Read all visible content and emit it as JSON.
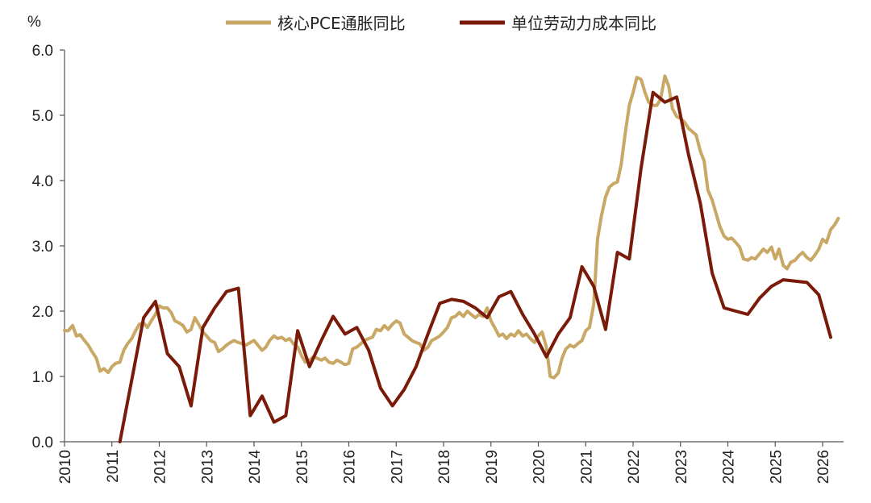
{
  "chart_data": {
    "type": "line",
    "unit_label": "%",
    "title": "",
    "xlabel": "",
    "ylabel": "",
    "xlim": [
      2010.0,
      2026.5
    ],
    "ylim": [
      0,
      6
    ],
    "x_ticks": [
      "2010",
      "2011",
      "2012",
      "2013",
      "2014",
      "2015",
      "2016",
      "2017",
      "2018",
      "2019",
      "2020",
      "2021",
      "2022",
      "2023",
      "2024",
      "2025",
      "2026"
    ],
    "y_ticks": [
      "0.0",
      "1.0",
      "2.0",
      "3.0",
      "4.0",
      "5.0",
      "6.0"
    ],
    "grid": false,
    "legend_position": "top",
    "series": [
      {
        "name": "核心PCE通胀同比",
        "color": "#c9a765",
        "points": [
          [
            2010.0,
            1.7
          ],
          [
            2010.08,
            1.7
          ],
          [
            2010.17,
            1.78
          ],
          [
            2010.25,
            1.62
          ],
          [
            2010.33,
            1.64
          ],
          [
            2010.42,
            1.55
          ],
          [
            2010.5,
            1.48
          ],
          [
            2010.58,
            1.38
          ],
          [
            2010.67,
            1.28
          ],
          [
            2010.75,
            1.08
          ],
          [
            2010.83,
            1.12
          ],
          [
            2010.92,
            1.06
          ],
          [
            2011.0,
            1.15
          ],
          [
            2011.08,
            1.2
          ],
          [
            2011.17,
            1.22
          ],
          [
            2011.25,
            1.4
          ],
          [
            2011.33,
            1.5
          ],
          [
            2011.42,
            1.58
          ],
          [
            2011.5,
            1.7
          ],
          [
            2011.58,
            1.8
          ],
          [
            2011.67,
            1.82
          ],
          [
            2011.75,
            1.75
          ],
          [
            2011.83,
            1.85
          ],
          [
            2011.92,
            1.95
          ],
          [
            2012.0,
            2.08
          ],
          [
            2012.08,
            2.05
          ],
          [
            2012.17,
            2.05
          ],
          [
            2012.25,
            1.98
          ],
          [
            2012.33,
            1.85
          ],
          [
            2012.42,
            1.82
          ],
          [
            2012.5,
            1.78
          ],
          [
            2012.58,
            1.68
          ],
          [
            2012.67,
            1.72
          ],
          [
            2012.75,
            1.9
          ],
          [
            2012.83,
            1.8
          ],
          [
            2012.92,
            1.68
          ],
          [
            2013.0,
            1.62
          ],
          [
            2013.08,
            1.55
          ],
          [
            2013.17,
            1.52
          ],
          [
            2013.25,
            1.38
          ],
          [
            2013.33,
            1.42
          ],
          [
            2013.42,
            1.48
          ],
          [
            2013.5,
            1.52
          ],
          [
            2013.58,
            1.55
          ],
          [
            2013.67,
            1.52
          ],
          [
            2013.75,
            1.5
          ],
          [
            2013.83,
            1.48
          ],
          [
            2013.92,
            1.52
          ],
          [
            2014.0,
            1.55
          ],
          [
            2014.08,
            1.48
          ],
          [
            2014.17,
            1.4
          ],
          [
            2014.25,
            1.45
          ],
          [
            2014.33,
            1.55
          ],
          [
            2014.42,
            1.62
          ],
          [
            2014.5,
            1.58
          ],
          [
            2014.58,
            1.6
          ],
          [
            2014.67,
            1.55
          ],
          [
            2014.75,
            1.58
          ],
          [
            2014.83,
            1.5
          ],
          [
            2014.92,
            1.45
          ],
          [
            2015.0,
            1.32
          ],
          [
            2015.08,
            1.22
          ],
          [
            2015.17,
            1.25
          ],
          [
            2015.25,
            1.3
          ],
          [
            2015.33,
            1.28
          ],
          [
            2015.42,
            1.25
          ],
          [
            2015.5,
            1.28
          ],
          [
            2015.58,
            1.22
          ],
          [
            2015.67,
            1.2
          ],
          [
            2015.75,
            1.25
          ],
          [
            2015.83,
            1.22
          ],
          [
            2015.92,
            1.18
          ],
          [
            2016.0,
            1.2
          ],
          [
            2016.08,
            1.42
          ],
          [
            2016.17,
            1.45
          ],
          [
            2016.25,
            1.5
          ],
          [
            2016.33,
            1.55
          ],
          [
            2016.42,
            1.58
          ],
          [
            2016.5,
            1.6
          ],
          [
            2016.58,
            1.72
          ],
          [
            2016.67,
            1.7
          ],
          [
            2016.75,
            1.78
          ],
          [
            2016.83,
            1.72
          ],
          [
            2016.92,
            1.8
          ],
          [
            2017.0,
            1.85
          ],
          [
            2017.08,
            1.82
          ],
          [
            2017.17,
            1.65
          ],
          [
            2017.25,
            1.6
          ],
          [
            2017.33,
            1.55
          ],
          [
            2017.42,
            1.52
          ],
          [
            2017.5,
            1.5
          ],
          [
            2017.58,
            1.4
          ],
          [
            2017.67,
            1.45
          ],
          [
            2017.75,
            1.55
          ],
          [
            2017.83,
            1.58
          ],
          [
            2017.92,
            1.62
          ],
          [
            2018.0,
            1.68
          ],
          [
            2018.08,
            1.75
          ],
          [
            2018.17,
            1.9
          ],
          [
            2018.25,
            1.92
          ],
          [
            2018.33,
            1.98
          ],
          [
            2018.42,
            1.92
          ],
          [
            2018.5,
            2.0
          ],
          [
            2018.58,
            1.95
          ],
          [
            2018.67,
            1.9
          ],
          [
            2018.75,
            1.95
          ],
          [
            2018.83,
            1.92
          ],
          [
            2018.92,
            2.05
          ],
          [
            2019.0,
            1.85
          ],
          [
            2019.08,
            1.75
          ],
          [
            2019.17,
            1.62
          ],
          [
            2019.25,
            1.65
          ],
          [
            2019.33,
            1.58
          ],
          [
            2019.42,
            1.65
          ],
          [
            2019.5,
            1.62
          ],
          [
            2019.58,
            1.7
          ],
          [
            2019.67,
            1.62
          ],
          [
            2019.75,
            1.65
          ],
          [
            2019.83,
            1.58
          ],
          [
            2019.92,
            1.52
          ],
          [
            2020.0,
            1.62
          ],
          [
            2020.08,
            1.68
          ],
          [
            2020.17,
            1.45
          ],
          [
            2020.25,
            1.0
          ],
          [
            2020.33,
            0.98
          ],
          [
            2020.42,
            1.05
          ],
          [
            2020.5,
            1.28
          ],
          [
            2020.58,
            1.42
          ],
          [
            2020.67,
            1.48
          ],
          [
            2020.75,
            1.45
          ],
          [
            2020.83,
            1.5
          ],
          [
            2020.92,
            1.55
          ],
          [
            2021.0,
            1.7
          ],
          [
            2021.08,
            1.75
          ],
          [
            2021.17,
            2.1
          ],
          [
            2021.25,
            3.1
          ],
          [
            2021.33,
            3.45
          ],
          [
            2021.42,
            3.75
          ],
          [
            2021.5,
            3.9
          ],
          [
            2021.58,
            3.95
          ],
          [
            2021.67,
            3.98
          ],
          [
            2021.75,
            4.25
          ],
          [
            2021.83,
            4.7
          ],
          [
            2021.92,
            5.15
          ],
          [
            2022.0,
            5.35
          ],
          [
            2022.08,
            5.58
          ],
          [
            2022.17,
            5.55
          ],
          [
            2022.25,
            5.35
          ],
          [
            2022.33,
            5.2
          ],
          [
            2022.42,
            5.15
          ],
          [
            2022.5,
            5.15
          ],
          [
            2022.58,
            5.25
          ],
          [
            2022.67,
            5.6
          ],
          [
            2022.75,
            5.45
          ],
          [
            2022.83,
            5.1
          ],
          [
            2022.92,
            4.98
          ],
          [
            2023.0,
            4.95
          ],
          [
            2023.08,
            4.9
          ],
          [
            2023.17,
            4.8
          ],
          [
            2023.25,
            4.75
          ],
          [
            2023.33,
            4.7
          ],
          [
            2023.42,
            4.45
          ],
          [
            2023.5,
            4.3
          ],
          [
            2023.58,
            3.85
          ],
          [
            2023.67,
            3.7
          ],
          [
            2023.75,
            3.5
          ],
          [
            2023.83,
            3.3
          ],
          [
            2023.92,
            3.15
          ],
          [
            2024.0,
            3.1
          ],
          [
            2024.08,
            3.12
          ],
          [
            2024.17,
            3.05
          ],
          [
            2024.25,
            2.98
          ],
          [
            2024.33,
            2.8
          ],
          [
            2024.42,
            2.78
          ],
          [
            2024.5,
            2.82
          ],
          [
            2024.58,
            2.8
          ],
          [
            2024.67,
            2.88
          ],
          [
            2024.75,
            2.95
          ],
          [
            2024.83,
            2.9
          ],
          [
            2024.92,
            2.98
          ],
          [
            2025.0,
            2.8
          ],
          [
            2025.08,
            2.95
          ],
          [
            2025.17,
            2.7
          ],
          [
            2025.25,
            2.65
          ],
          [
            2025.33,
            2.75
          ],
          [
            2025.42,
            2.78
          ],
          [
            2025.5,
            2.85
          ],
          [
            2025.58,
            2.9
          ],
          [
            2025.67,
            2.82
          ],
          [
            2025.75,
            2.78
          ],
          [
            2025.83,
            2.85
          ],
          [
            2025.92,
            2.95
          ],
          [
            2026.0,
            3.1
          ],
          [
            2026.08,
            3.05
          ],
          [
            2026.17,
            3.25
          ],
          [
            2026.25,
            3.32
          ],
          [
            2026.33,
            3.42
          ]
        ]
      },
      {
        "name": "单位劳动力成本同比",
        "color": "#7a1a08",
        "points": [
          [
            2011.17,
            0.0
          ],
          [
            2011.42,
            0.95
          ],
          [
            2011.67,
            1.9
          ],
          [
            2011.92,
            2.15
          ],
          [
            2012.17,
            1.35
          ],
          [
            2012.42,
            1.15
          ],
          [
            2012.67,
            0.55
          ],
          [
            2012.92,
            1.75
          ],
          [
            2013.17,
            2.05
          ],
          [
            2013.42,
            2.3
          ],
          [
            2013.67,
            2.35
          ],
          [
            2013.92,
            0.4
          ],
          [
            2014.17,
            0.7
          ],
          [
            2014.42,
            0.3
          ],
          [
            2014.67,
            0.4
          ],
          [
            2014.92,
            1.7
          ],
          [
            2015.17,
            1.15
          ],
          [
            2015.42,
            1.55
          ],
          [
            2015.67,
            1.92
          ],
          [
            2015.92,
            1.65
          ],
          [
            2016.17,
            1.75
          ],
          [
            2016.42,
            1.4
          ],
          [
            2016.67,
            0.82
          ],
          [
            2016.92,
            0.55
          ],
          [
            2017.17,
            0.8
          ],
          [
            2017.42,
            1.15
          ],
          [
            2017.67,
            1.65
          ],
          [
            2017.92,
            2.12
          ],
          [
            2018.17,
            2.18
          ],
          [
            2018.42,
            2.15
          ],
          [
            2018.67,
            2.05
          ],
          [
            2018.92,
            1.9
          ],
          [
            2019.17,
            2.22
          ],
          [
            2019.42,
            2.3
          ],
          [
            2019.67,
            1.95
          ],
          [
            2019.92,
            1.65
          ],
          [
            2020.17,
            1.3
          ],
          [
            2020.42,
            1.65
          ],
          [
            2020.67,
            1.9
          ],
          [
            2020.92,
            2.68
          ],
          [
            2021.17,
            2.38
          ],
          [
            2021.42,
            1.72
          ],
          [
            2021.67,
            2.9
          ],
          [
            2021.92,
            2.8
          ],
          [
            2022.17,
            4.2
          ],
          [
            2022.42,
            5.35
          ],
          [
            2022.67,
            5.2
          ],
          [
            2022.92,
            5.28
          ],
          [
            2023.17,
            4.4
          ],
          [
            2023.42,
            3.65
          ],
          [
            2023.67,
            2.58
          ],
          [
            2023.92,
            2.05
          ],
          [
            2024.17,
            2.0
          ],
          [
            2024.42,
            1.95
          ],
          [
            2024.67,
            2.2
          ],
          [
            2024.92,
            2.38
          ],
          [
            2025.17,
            2.48
          ],
          [
            2025.42,
            2.46
          ],
          [
            2025.67,
            2.44
          ],
          [
            2025.92,
            2.25
          ],
          [
            2026.17,
            1.6
          ]
        ]
      }
    ]
  }
}
